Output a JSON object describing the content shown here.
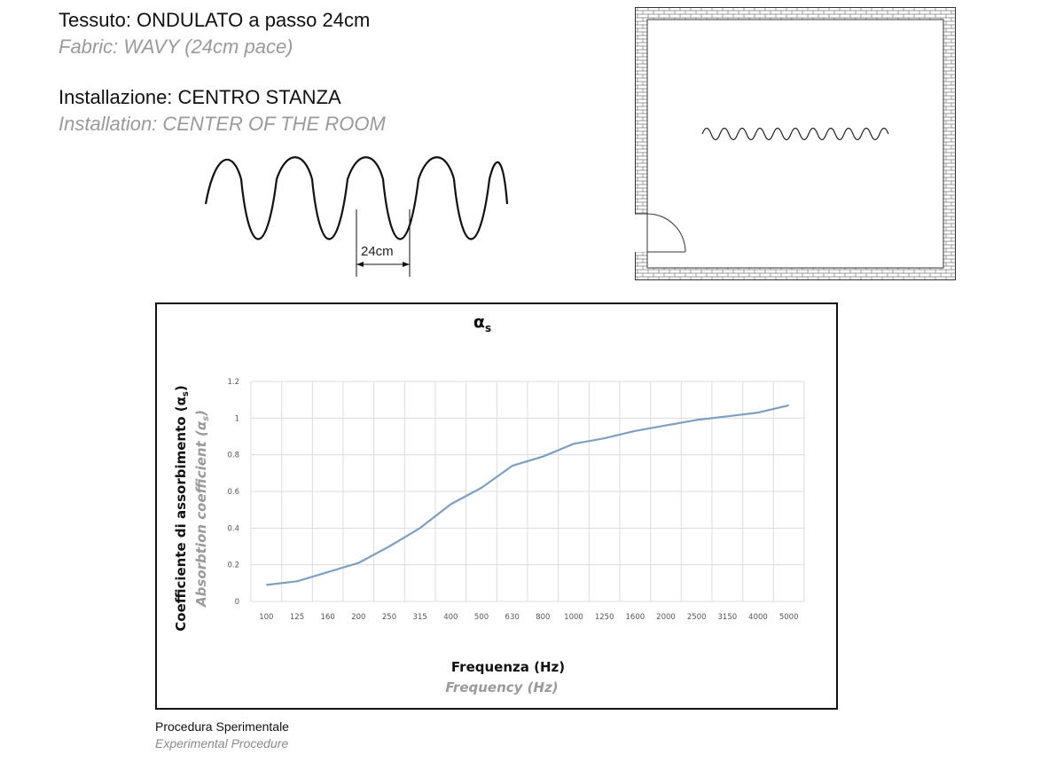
{
  "header": {
    "fabric_it": "Tessuto: ONDULATO a passo 24cm",
    "fabric_en": "Fabric: WAVY (24cm pace)",
    "install_it": "Installazione: CENTRO STANZA",
    "install_en": "Installation: CENTER OF THE ROOM"
  },
  "wave_diagram": {
    "pitch_label": "24cm"
  },
  "footer": {
    "label_it": "Procedura Sperimentale",
    "label_en": "Experimental Procedure"
  },
  "chart_data": {
    "type": "line",
    "title": "α",
    "title_subscript": "s",
    "ylabel": "Coefficiente di assorbimento (α",
    "ylabel_subscript": "s",
    "ylabel_suffix": ")",
    "ylabel_en": "Absorbtion coefficient (α",
    "ylabel_en_subscript": "s",
    "ylabel_en_suffix": ")",
    "xlabel": "Frequenza (Hz)",
    "xlabel_en": "Frequency (Hz)",
    "categories": [
      "100",
      "125",
      "160",
      "200",
      "250",
      "315",
      "400",
      "500",
      "630",
      "800",
      "1000",
      "1250",
      "1600",
      "2000",
      "2500",
      "3150",
      "4000",
      "5000"
    ],
    "series": [
      {
        "values": [
          0.09,
          0.11,
          0.16,
          0.21,
          0.3,
          0.4,
          0.53,
          0.62,
          0.74,
          0.79,
          0.86,
          0.89,
          0.93,
          0.96,
          0.99,
          1.01,
          1.03,
          1.07
        ]
      }
    ],
    "yticks": [
      "0",
      "0.2",
      "0.4",
      "0.6",
      "0.8",
      "1",
      "1.2"
    ],
    "ylim": [
      0,
      1.2
    ],
    "grid": true,
    "line_color": "#7f9fc0"
  }
}
